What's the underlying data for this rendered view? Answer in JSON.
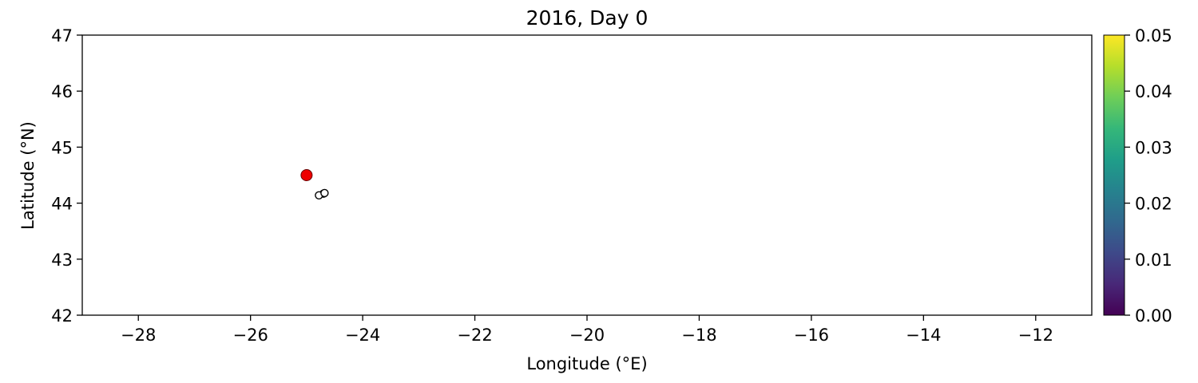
{
  "chart_data": {
    "type": "scatter",
    "title": "2016, Day 0",
    "xlabel": "Longitude (°E)",
    "ylabel": "Latitude (°N)",
    "xlim": [
      -29,
      -11
    ],
    "ylim": [
      42,
      47
    ],
    "xticks": [
      -28,
      -26,
      -24,
      -22,
      -20,
      -18,
      -16,
      -14,
      -12
    ],
    "yticks": [
      42,
      43,
      44,
      45,
      46,
      47
    ],
    "grid": false,
    "points": [
      {
        "x": -25.0,
        "y": 44.5,
        "color": "#ee0000",
        "filled": true
      },
      {
        "x": -24.7,
        "y": 44.17,
        "color": "#ffffff",
        "filled": false
      },
      {
        "x": -24.78,
        "y": 44.14,
        "color": "#ffffff",
        "filled": false
      },
      {
        "x": -24.68,
        "y": 44.18,
        "color": "#ffffff",
        "filled": false
      }
    ],
    "colorbar": {
      "colormap": "viridis",
      "range": [
        0,
        0.05
      ],
      "ticks": [
        "0.00",
        "0.01",
        "0.02",
        "0.03",
        "0.04",
        "0.05"
      ],
      "colors": [
        "#440154",
        "#482878",
        "#3e4989",
        "#31688e",
        "#26828e",
        "#1f9e89",
        "#35b779",
        "#6ece58",
        "#b5de2b",
        "#fde725"
      ]
    }
  }
}
